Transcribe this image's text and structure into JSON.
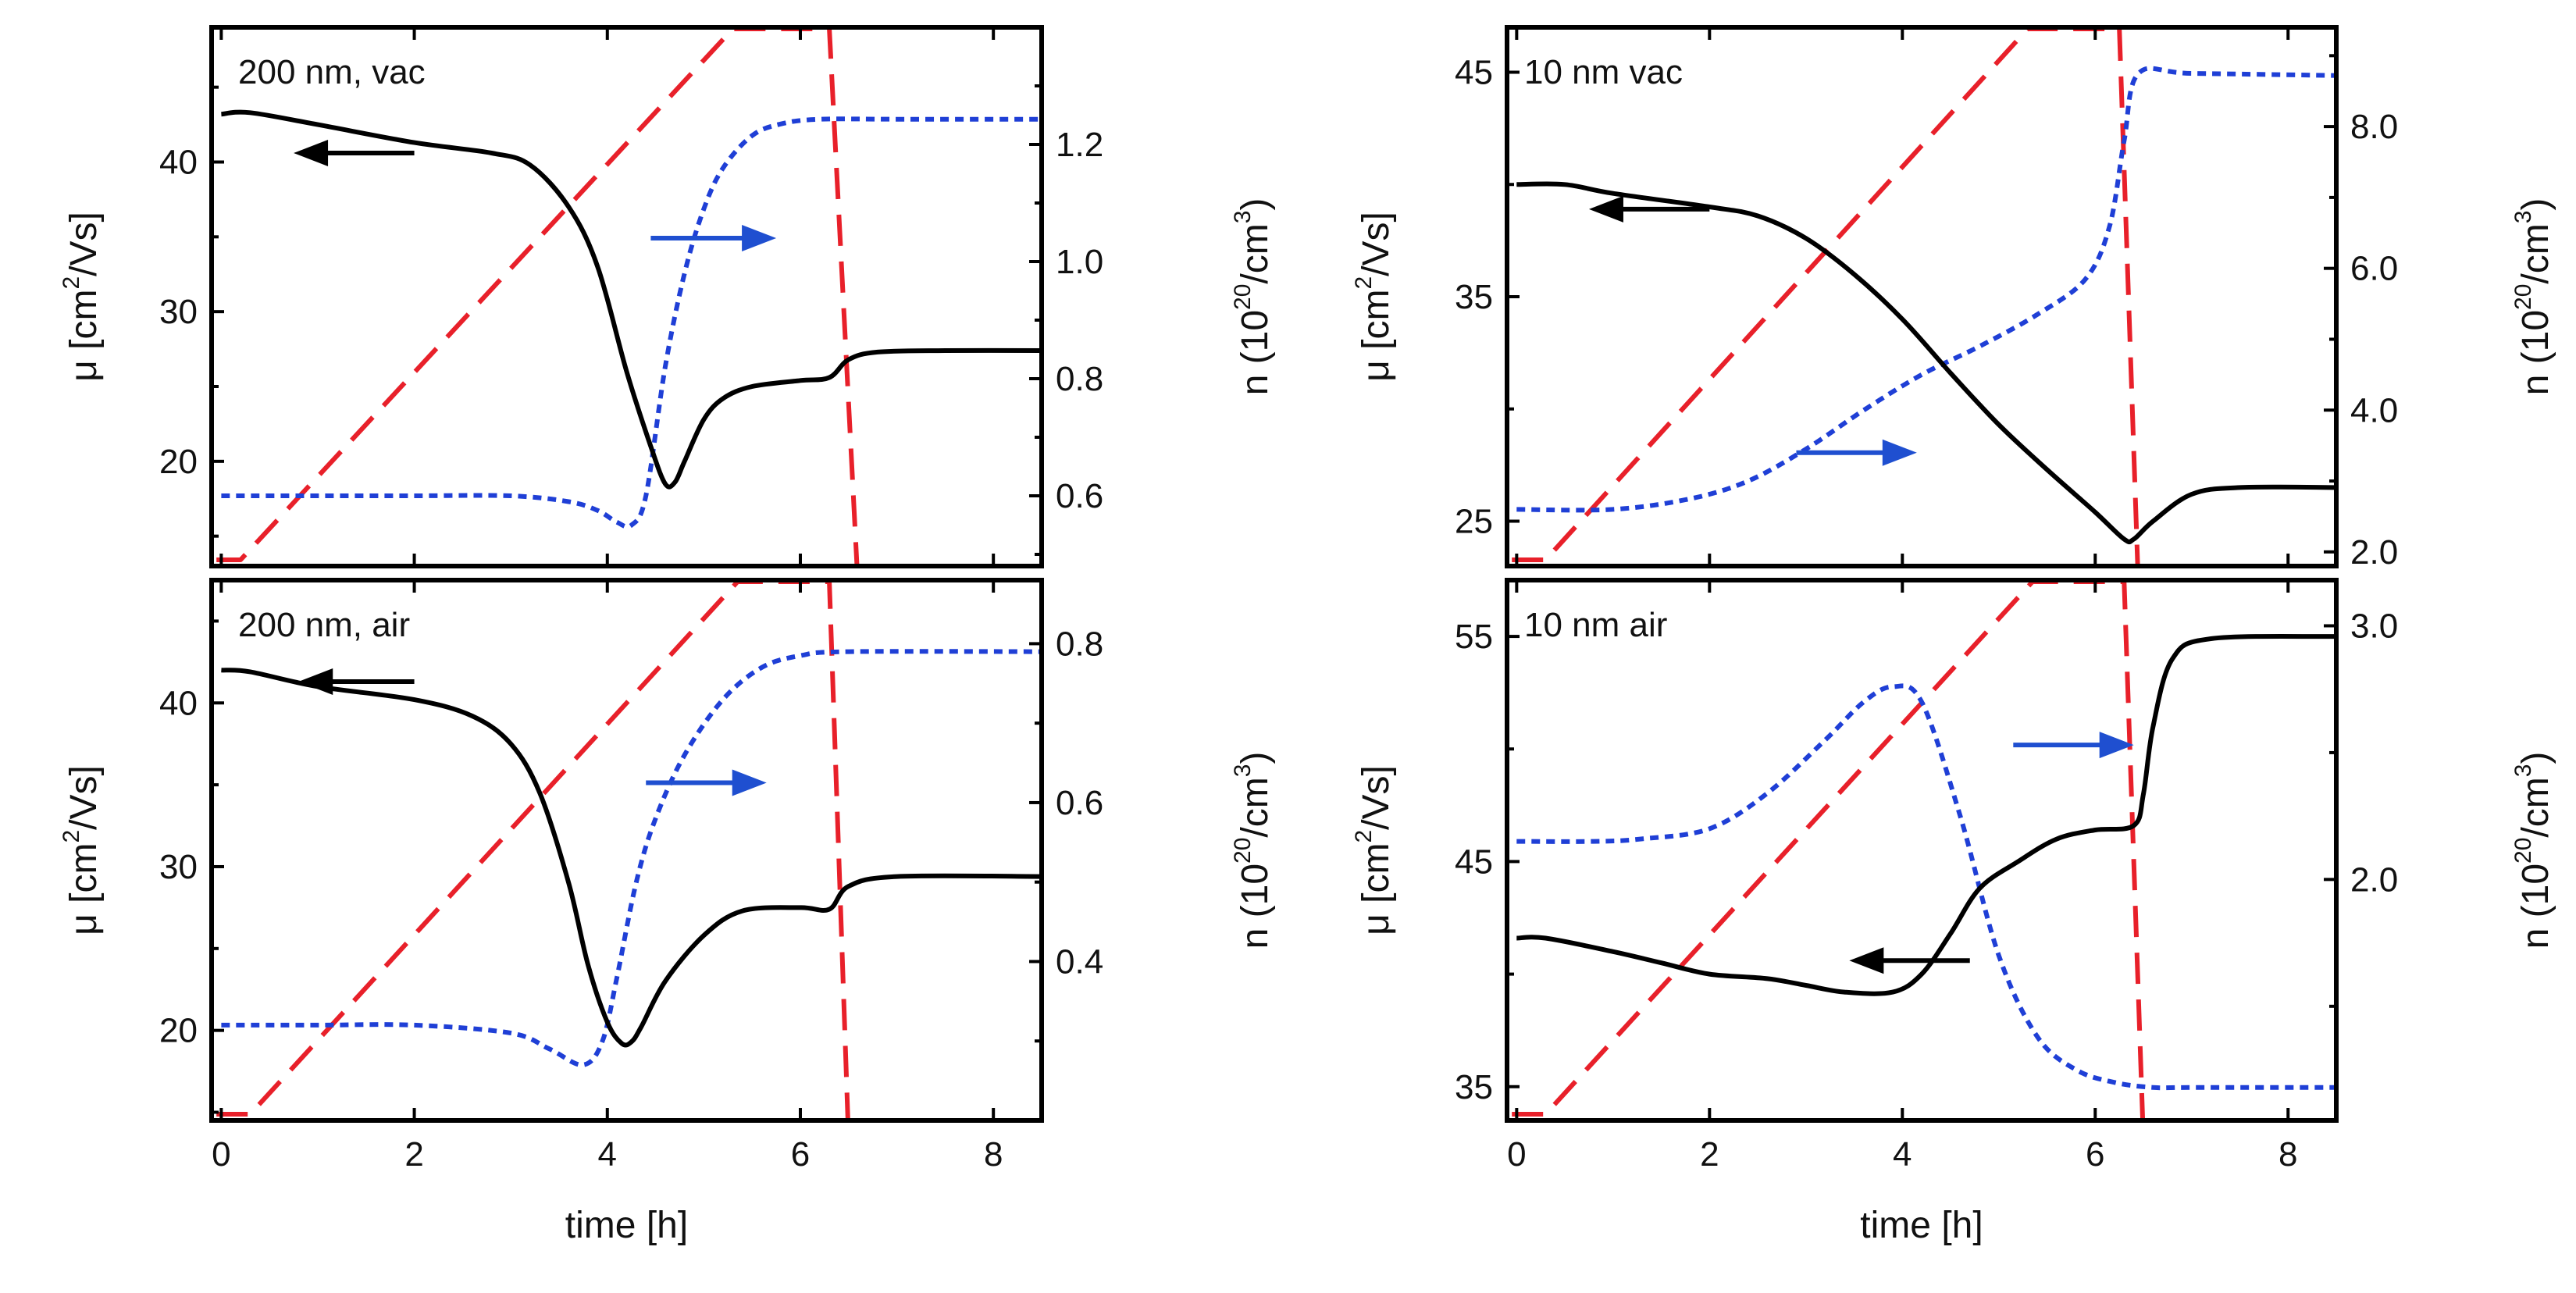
{
  "colors": {
    "mobility": "#000000",
    "density": "#1f3fd6",
    "temperature": "#e8202a",
    "arrow_mu": "#000000",
    "arrow_n": "#1f4fd0",
    "frame": "#000000"
  },
  "chart_data": [
    {
      "type": "line",
      "title": "200 nm, vac",
      "xlabel": "time [h]",
      "ylabel": "μ [cm²/Vs]",
      "ylabel_parts": {
        "pre": "μ [cm",
        "sup": "2",
        "post": "/Vs]"
      },
      "y2label": "n (10²⁰/cm³)",
      "y2label_parts": {
        "pre": "n (10",
        "sup": "20",
        "mid": "/cm",
        "sup2": "3",
        "post": ")"
      },
      "xlim": [
        -0.1,
        8.5
      ],
      "ylim": [
        13,
        49
      ],
      "y2lim": [
        0.48,
        1.4
      ],
      "x_ticks": [
        0,
        2,
        4,
        6,
        8
      ],
      "y_ticks": [
        20,
        30,
        40
      ],
      "y2_ticks": [
        0.6,
        0.8,
        1.0,
        1.2
      ],
      "y2_tick_labels": [
        "0.6",
        "0.8",
        "1.0",
        "1.2"
      ],
      "series": [
        {
          "name": "mobility",
          "axis": "left",
          "style": "solid",
          "x": [
            0,
            0.3,
            1,
            2,
            2.8,
            3.2,
            3.6,
            3.9,
            4.2,
            4.45,
            4.6,
            4.7,
            4.8,
            5.0,
            5.2,
            5.5,
            6.0,
            6.3,
            6.5,
            6.8,
            7.5,
            8.5
          ],
          "values": [
            43.2,
            43.3,
            42.5,
            41.3,
            40.6,
            39.8,
            37.0,
            33.0,
            26.0,
            21.0,
            18.5,
            18.6,
            20.0,
            22.8,
            24.2,
            25.0,
            25.4,
            25.6,
            26.8,
            27.3,
            27.4,
            27.4
          ]
        },
        {
          "name": "carrier density",
          "axis": "right",
          "style": "dotted",
          "x": [
            0,
            1,
            2,
            3,
            3.6,
            3.9,
            4.1,
            4.25,
            4.4,
            4.6,
            4.8,
            5.0,
            5.2,
            5.5,
            5.8,
            6.2,
            7,
            8.5
          ],
          "values": [
            0.6,
            0.6,
            0.6,
            0.6,
            0.59,
            0.575,
            0.555,
            0.55,
            0.6,
            0.82,
            0.98,
            1.09,
            1.16,
            1.215,
            1.235,
            1.243,
            1.243,
            1.243
          ]
        },
        {
          "name": "temperature",
          "axis": "scaled",
          "style": "dashed",
          "x": [
            -0.05,
            0.2,
            5.3,
            6.3,
            6.6
          ],
          "values": [
            0.0,
            0.0,
            1.0,
            1.0,
            -0.06
          ]
        }
      ],
      "annotations": [
        {
          "label": "arrow-left-mobility",
          "x": [
            2.0,
            0.75
          ],
          "y": [
            40.6,
            40.6
          ]
        },
        {
          "label": "arrow-right-density",
          "x": [
            4.45,
            5.75
          ],
          "y": [
            1.04,
            1.04
          ]
        }
      ]
    },
    {
      "type": "line",
      "title": "200 nm, air",
      "xlabel": "time [h]",
      "ylabel": "μ [cm²/Vs]",
      "ylabel_parts": {
        "pre": "μ [cm",
        "sup": "2",
        "post": "/Vs]"
      },
      "y2label": "n (10²⁰/cm³)",
      "y2label_parts": {
        "pre": "n (10",
        "sup": "20",
        "mid": "/cm",
        "sup2": "3",
        "post": ")"
      },
      "xlim": [
        -0.1,
        8.5
      ],
      "ylim": [
        14.5,
        47.5
      ],
      "y2lim": [
        0.2,
        0.88
      ],
      "x_ticks": [
        0,
        2,
        4,
        6,
        8
      ],
      "y_ticks": [
        20,
        30,
        40
      ],
      "y2_ticks": [
        0.4,
        0.6,
        0.8
      ],
      "y2_tick_labels": [
        "0.4",
        "0.6",
        "0.8"
      ],
      "series": [
        {
          "name": "mobility",
          "axis": "left",
          "style": "solid",
          "x": [
            0,
            0.3,
            1,
            2,
            2.6,
            3.0,
            3.3,
            3.6,
            3.8,
            4.0,
            4.15,
            4.25,
            4.35,
            4.6,
            5.0,
            5.4,
            6.0,
            6.3,
            6.5,
            7.0,
            8.5
          ],
          "values": [
            42.0,
            41.9,
            41.0,
            40.2,
            39.2,
            37.5,
            34.5,
            29.0,
            24.0,
            20.5,
            19.2,
            19.3,
            20.2,
            23.0,
            25.8,
            27.3,
            27.5,
            27.4,
            28.8,
            29.4,
            29.4
          ]
        },
        {
          "name": "carrier density",
          "axis": "right",
          "style": "dotted",
          "x": [
            0,
            1,
            2,
            3,
            3.4,
            3.75,
            3.95,
            4.1,
            4.3,
            4.5,
            4.8,
            5.2,
            5.6,
            6.0,
            6.5,
            8.5
          ],
          "values": [
            0.32,
            0.32,
            0.32,
            0.31,
            0.29,
            0.27,
            0.3,
            0.38,
            0.5,
            0.58,
            0.66,
            0.73,
            0.77,
            0.785,
            0.79,
            0.79
          ]
        },
        {
          "name": "temperature",
          "axis": "scaled",
          "style": "dashed",
          "x": [
            -0.05,
            0.3,
            5.35,
            6.3,
            6.5
          ],
          "values": [
            0.0,
            0.0,
            1.0,
            1.0,
            -0.05
          ]
        }
      ],
      "annotations": [
        {
          "label": "arrow-left-mobility",
          "x": [
            2.0,
            0.8
          ],
          "y": [
            41.3,
            41.3
          ]
        },
        {
          "label": "arrow-right-density",
          "x": [
            4.4,
            5.65
          ],
          "y": [
            0.625,
            0.625
          ]
        }
      ]
    },
    {
      "type": "line",
      "title": "10 nm vac",
      "xlabel": "time [h]",
      "ylabel": "μ [cm²/Vs]",
      "ylabel_parts": {
        "pre": "μ [cm",
        "sup": "2",
        "post": "/Vs]"
      },
      "y2label": "n (10²⁰/cm³)",
      "y2label_parts": {
        "pre": "n (10",
        "sup": "20",
        "mid": "/cm",
        "sup2": "3",
        "post": ")"
      },
      "xlim": [
        -0.1,
        8.5
      ],
      "ylim": [
        23.0,
        47.0
      ],
      "y2lim": [
        1.8,
        9.4
      ],
      "x_ticks": [
        0,
        2,
        4,
        6,
        8
      ],
      "y_ticks": [
        25,
        35,
        45
      ],
      "y2_ticks": [
        2,
        4,
        6,
        8
      ],
      "y2_tick_labels": [
        "2.0",
        "4.0",
        "6.0",
        "8.0"
      ],
      "series": [
        {
          "name": "mobility",
          "axis": "left",
          "style": "solid",
          "x": [
            0,
            0.5,
            1,
            2,
            2.5,
            3.0,
            3.5,
            4.0,
            4.5,
            5.0,
            5.5,
            6.0,
            6.3,
            6.4,
            6.6,
            7.0,
            7.5,
            8.5
          ],
          "values": [
            40.0,
            40.0,
            39.6,
            39.0,
            38.6,
            37.6,
            36.0,
            34.0,
            31.6,
            29.3,
            27.3,
            25.4,
            24.2,
            24.2,
            25.0,
            26.2,
            26.5,
            26.5
          ]
        },
        {
          "name": "carrier density",
          "axis": "right",
          "style": "dotted",
          "x": [
            0,
            1,
            1.8,
            2.4,
            3.0,
            3.6,
            4.2,
            4.8,
            5.4,
            5.9,
            6.15,
            6.3,
            6.45,
            7.0,
            8.5
          ],
          "values": [
            2.6,
            2.6,
            2.75,
            3.0,
            3.45,
            4.0,
            4.5,
            4.9,
            5.35,
            5.85,
            6.6,
            7.8,
            8.75,
            8.75,
            8.72
          ]
        },
        {
          "name": "temperature",
          "axis": "scaled",
          "style": "dashed",
          "x": [
            -0.05,
            0.3,
            5.3,
            6.25,
            6.45
          ],
          "values": [
            0.0,
            0.0,
            1.0,
            1.0,
            -0.06
          ]
        }
      ],
      "annotations": [
        {
          "label": "arrow-left-mobility",
          "x": [
            2.0,
            0.75
          ],
          "y": [
            38.9,
            38.9
          ]
        },
        {
          "label": "arrow-right-density",
          "x": [
            2.9,
            4.15
          ],
          "y": [
            3.4,
            3.4
          ]
        }
      ]
    },
    {
      "type": "line",
      "title": "10 nm air",
      "xlabel": "time [h]",
      "ylabel": "μ [cm²/Vs]",
      "ylabel_parts": {
        "pre": "μ [cm",
        "sup": "2",
        "post": "/Vs]"
      },
      "y2label": "n (10²⁰/cm³)",
      "y2label_parts": {
        "pre": "n (10",
        "sup": "20",
        "mid": "/cm",
        "sup2": "3",
        "post": ")"
      },
      "xlim": [
        -0.1,
        8.5
      ],
      "ylim": [
        33.5,
        57.5
      ],
      "y2lim": [
        1.05,
        3.18
      ],
      "x_ticks": [
        0,
        2,
        4,
        6,
        8
      ],
      "y_ticks": [
        35,
        45,
        55
      ],
      "y2_ticks": [
        2.0,
        3.0
      ],
      "y2_tick_labels": [
        "2.0",
        "3.0"
      ],
      "series": [
        {
          "name": "mobility",
          "axis": "left",
          "style": "solid",
          "x": [
            0,
            0.3,
            1,
            1.5,
            2.0,
            2.6,
            3.0,
            3.4,
            3.9,
            4.2,
            4.5,
            4.8,
            5.2,
            5.6,
            6.0,
            6.4,
            6.5,
            6.6,
            6.8,
            7.2,
            8.5
          ],
          "values": [
            41.6,
            41.6,
            41.0,
            40.5,
            40.0,
            39.8,
            39.5,
            39.2,
            39.2,
            40.0,
            41.8,
            43.8,
            45.0,
            46.0,
            46.4,
            46.6,
            48.0,
            51.0,
            54.0,
            54.9,
            55.0
          ]
        },
        {
          "name": "carrier density",
          "axis": "right",
          "style": "dotted",
          "x": [
            0,
            0.8,
            1.3,
            2.0,
            2.6,
            3.2,
            3.6,
            3.9,
            4.2,
            4.6,
            5.0,
            5.4,
            5.8,
            6.2,
            6.6,
            7.0,
            8.5
          ],
          "values": [
            2.15,
            2.15,
            2.16,
            2.2,
            2.34,
            2.55,
            2.7,
            2.76,
            2.7,
            2.25,
            1.7,
            1.38,
            1.25,
            1.2,
            1.18,
            1.18,
            1.18
          ]
        },
        {
          "name": "temperature",
          "axis": "scaled",
          "style": "dashed",
          "x": [
            -0.05,
            0.3,
            5.35,
            6.3,
            6.5
          ],
          "values": [
            0.0,
            0.0,
            1.0,
            1.0,
            -0.05
          ]
        }
      ],
      "annotations": [
        {
          "label": "arrow-left-mobility",
          "x": [
            4.7,
            3.45
          ],
          "y": [
            40.6,
            40.6
          ]
        },
        {
          "label": "arrow-right-density",
          "x": [
            5.15,
            6.4
          ],
          "y": [
            2.53,
            2.53
          ]
        }
      ]
    }
  ]
}
